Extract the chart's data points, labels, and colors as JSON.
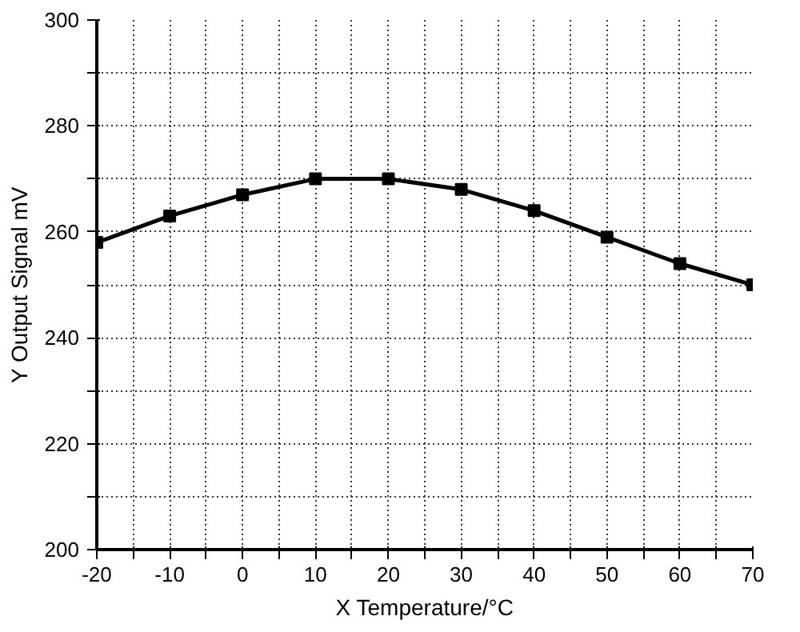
{
  "chart_data": {
    "type": "line",
    "xlabel": "X Temperature/°C",
    "ylabel": "Y Output Signal mV",
    "x": [
      -20,
      -10,
      0,
      10,
      20,
      30,
      40,
      50,
      60,
      70
    ],
    "series": [
      {
        "color": "#000000",
        "values": [
          258,
          263,
          267,
          270,
          270,
          268,
          264,
          259,
          254,
          250
        ]
      }
    ],
    "xlim": [
      -20,
      70
    ],
    "xticks": [
      -20,
      {
        "value": -15,
        "label": null
      },
      -10,
      {
        "value": -5,
        "label": null
      },
      0,
      {
        "value": 5,
        "label": null
      },
      10,
      {
        "value": 15,
        "label": null
      },
      20,
      {
        "value": 25,
        "label": null
      },
      30,
      {
        "value": 35,
        "label": null
      },
      40,
      {
        "value": 45,
        "label": null
      },
      50,
      {
        "value": 55,
        "label": null
      },
      60,
      {
        "value": 65,
        "label": null
      },
      70
    ],
    "ylim": [
      200,
      300
    ],
    "yticks": [
      200,
      {
        "value": 210,
        "label": null
      },
      220,
      {
        "value": 230,
        "label": null
      },
      240,
      {
        "value": 250,
        "label": null
      },
      260,
      {
        "value": 270,
        "label": null
      },
      280,
      {
        "value": 290,
        "label": null
      },
      300
    ],
    "grid": true,
    "marker": "square",
    "line_style": "solid"
  }
}
